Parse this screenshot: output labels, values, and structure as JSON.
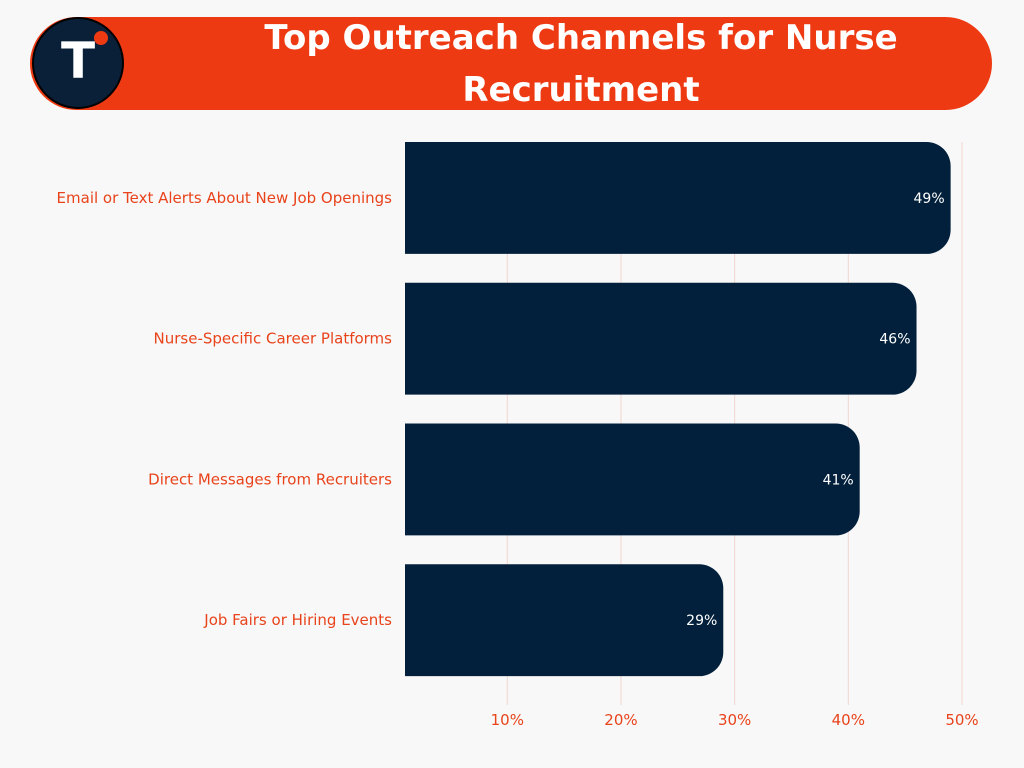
{
  "header": {
    "title": "Top Outreach Channels for Nurse Recruitment",
    "logo_letter": "T"
  },
  "colors": {
    "bar": "#02203b",
    "accent": "#ee3a12",
    "label": "#e8431b",
    "grid": "#f1d6d0"
  },
  "chart_data": {
    "type": "bar",
    "orientation": "horizontal",
    "categories": [
      "Email or Text Alerts About New Job Openings",
      "Nurse-Specific Career Platforms",
      "Direct Messages from Recruiters",
      "Job Fairs or Hiring Events"
    ],
    "values": [
      49,
      46,
      41,
      29
    ],
    "value_labels": [
      "49%",
      "46%",
      "41%",
      "29%"
    ],
    "xticks": [
      10,
      20,
      30,
      40,
      50
    ],
    "xtick_labels": [
      "10%",
      "20%",
      "30%",
      "40%",
      "50%"
    ],
    "xlim": [
      1,
      50
    ],
    "grid": true
  }
}
